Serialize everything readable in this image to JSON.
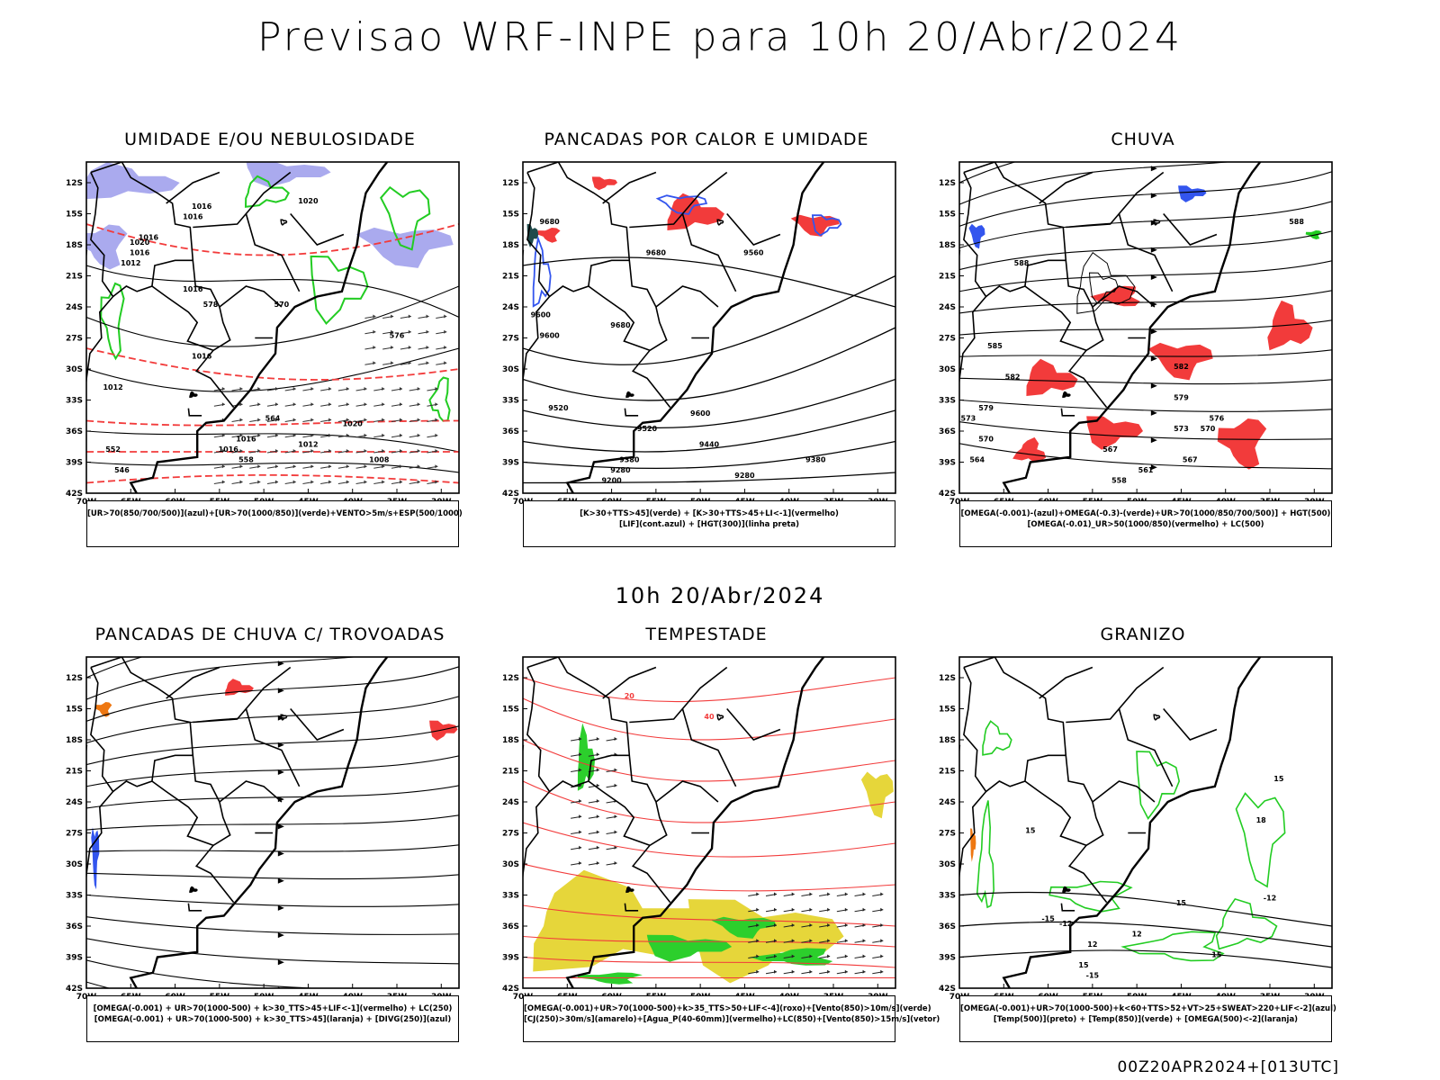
{
  "header": {
    "title": "Previsao WRF-INPE  para 10h 20/Abr/2024"
  },
  "mid_title": "10h 20/Abr/2024",
  "footer": "00Z20APR2024+[013UTC]",
  "axes": {
    "lat_ticks": [
      "12S",
      "15S",
      "18S",
      "21S",
      "24S",
      "27S",
      "30S",
      "33S",
      "36S",
      "39S",
      "42S"
    ],
    "lon_ticks": [
      "70W",
      "65W",
      "60W",
      "55W",
      "50W",
      "45W",
      "40W",
      "35W",
      "30W"
    ]
  },
  "colors": {
    "red": "#f23b3b",
    "blue": "#3355ee",
    "green": "#22cc22",
    "lavender": "#aaaaee",
    "yellow": "#e6d63a",
    "orange": "#ee7711",
    "teal": "#1f4a4a"
  },
  "panels": [
    {
      "id": "umidade",
      "title": "UMIDADE E/OU NEBULOSIDADE",
      "legend": [
        "[UR>70(850/700/500)](azul)+[UR>70(1000/850)](verde)+VENTO>5m/s+ESP(500/1000)"
      ],
      "labels": [
        "1016",
        "1016",
        "1016",
        "1020",
        "1016",
        "1012",
        "1016",
        "1016",
        "1012",
        "1020",
        "1016",
        "1016",
        "1012",
        "1020",
        "1008",
        "576",
        "578",
        "570",
        "564",
        "558",
        "552",
        "546"
      ]
    },
    {
      "id": "pancadas-calor",
      "title": "PANCADAS POR CALOR E UMIDADE",
      "legend": [
        "[K>30+TTS>45](verde) + [K>30+TTS>45+LI<-1](vermelho)",
        "[LIF](cont.azul) + [HGT(300)](linha preta)"
      ],
      "labels": [
        "9680",
        "9680",
        "9600",
        "9600",
        "9680",
        "9560",
        "9600",
        "9520",
        "9520",
        "9440",
        "9380",
        "9380",
        "9280",
        "9280",
        "9200"
      ]
    },
    {
      "id": "chuva",
      "title": "CHUVA",
      "legend": [
        "[OMEGA(-0.001)-(azul)+OMEGA(-0.3)-(verde)+UR>70(1000/850/700/500)] + HGT(500)",
        "[OMEGA(-0.01)_UR>50(1000/850)(vermelho) + LC(500)"
      ],
      "labels": [
        "588",
        "588",
        "585",
        "582",
        "582",
        "579",
        "579",
        "576",
        "573",
        "573",
        "570",
        "570",
        "567",
        "567",
        "564",
        "561",
        "558"
      ]
    },
    {
      "id": "pancadas-trovoadas",
      "title": "PANCADAS DE CHUVA C/ TROVOADAS",
      "legend": [
        "[OMEGA(-0.001) + UR>70(1000-500) + k>30_TTS>45+LIF<-1](vermelho) + LC(250)",
        "[OMEGA(-0.001) + UR>70(1000-500) + k>30_TTS>45](laranja) + [DIVG(250)](azul)"
      ],
      "labels": []
    },
    {
      "id": "tempestade",
      "title": "TEMPESTADE",
      "legend": [
        "[OMEGA(-0.001)+UR>70(1000-500)+k>35_TTS>50+LIF<-4](roxo)+[Vento(850)>10m/s](verde)",
        "[CJ(250)>30m/s](amarelo)+[Agua_P(40-60mm)](vermelho)+LC(850)+[Vento(850)>15m/s](vetor)"
      ],
      "labels": [
        "20",
        "40"
      ]
    },
    {
      "id": "granizo",
      "title": "GRANIZO",
      "legend": [
        "[OMEGA(-0.001)+UR>70(1000-500)+k<60+TTS>52+VT>25+SWEAT>220+LIF<-2](azul)",
        "[Temp(500)](preto) + [Temp(850)](verde) + [OMEGA(500)<-2](laranja)"
      ],
      "labels": [
        "-12",
        "-12",
        "-15",
        "-15",
        "15",
        "15",
        "12",
        "15",
        "18",
        "15",
        "12",
        "15"
      ]
    }
  ]
}
